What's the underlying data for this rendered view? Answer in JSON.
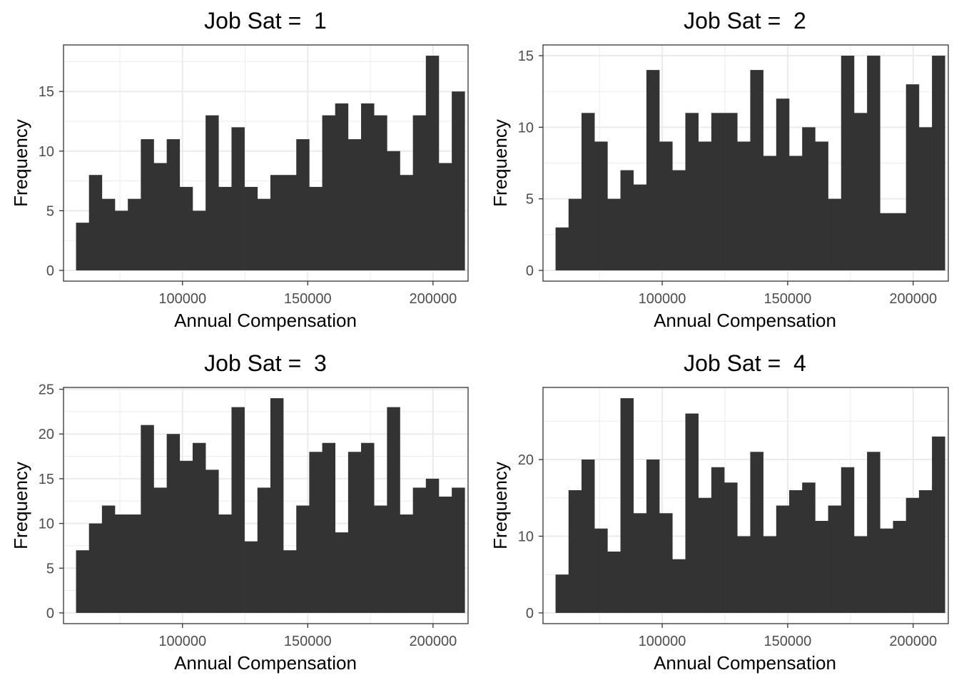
{
  "chart_data": [
    {
      "type": "bar",
      "title": "Job Sat =  1",
      "xlabel": "Annual Compensation",
      "ylabel": "Frequency",
      "xlim": [
        52500,
        214000
      ],
      "ylim": [
        -0.9,
        18.9
      ],
      "x_ticks": [
        100000,
        150000,
        200000
      ],
      "y_ticks": [
        0,
        5,
        10,
        15
      ],
      "bin_start": 57500,
      "bin_width": 5172,
      "values": [
        4,
        8,
        6,
        5,
        6,
        11,
        9,
        11,
        7,
        5,
        13,
        7,
        12,
        7,
        6,
        8,
        8,
        11,
        7,
        13,
        14,
        11,
        14,
        13,
        10,
        8,
        13,
        18,
        9,
        15
      ],
      "grid": true
    },
    {
      "type": "bar",
      "title": "Job Sat =  2",
      "xlabel": "Annual Compensation",
      "ylabel": "Frequency",
      "xlim": [
        52500,
        214000
      ],
      "ylim": [
        -0.75,
        15.75
      ],
      "x_ticks": [
        100000,
        150000,
        200000
      ],
      "y_ticks": [
        0,
        5,
        10,
        15
      ],
      "bin_start": 57500,
      "bin_width": 5172,
      "values": [
        3,
        5,
        11,
        9,
        5,
        7,
        6,
        14,
        9,
        7,
        11,
        9,
        11,
        11,
        9,
        14,
        8,
        12,
        8,
        10,
        9,
        5,
        15,
        11,
        15,
        4,
        4,
        13,
        10,
        15
      ],
      "grid": true
    },
    {
      "type": "bar",
      "title": "Job Sat =  3",
      "xlabel": "Annual Compensation",
      "ylabel": "Frequency",
      "xlim": [
        52500,
        214000
      ],
      "ylim": [
        -1.2,
        25.2
      ],
      "x_ticks": [
        100000,
        150000,
        200000
      ],
      "y_ticks": [
        0,
        5,
        10,
        15,
        20,
        25
      ],
      "bin_start": 57500,
      "bin_width": 5172,
      "values": [
        7,
        10,
        12,
        11,
        11,
        21,
        14,
        20,
        17,
        19,
        16,
        11,
        23,
        8,
        14,
        24,
        7,
        12,
        18,
        19,
        9,
        18,
        19,
        12,
        23,
        11,
        14,
        15,
        13,
        14
      ],
      "grid": true
    },
    {
      "type": "bar",
      "title": "Job Sat =  4",
      "xlabel": "Annual Compensation",
      "ylabel": "Frequency",
      "xlim": [
        52500,
        214000
      ],
      "ylim": [
        -1.4,
        29.4
      ],
      "x_ticks": [
        100000,
        150000,
        200000
      ],
      "y_ticks": [
        0,
        10,
        20
      ],
      "bin_start": 57500,
      "bin_width": 5172,
      "values": [
        5,
        16,
        20,
        11,
        8,
        28,
        13,
        20,
        13,
        7,
        26,
        15,
        19,
        17,
        10,
        21,
        10,
        14,
        16,
        17,
        12,
        14,
        19,
        10,
        21,
        11,
        12,
        15,
        16,
        23
      ],
      "grid": true
    }
  ]
}
